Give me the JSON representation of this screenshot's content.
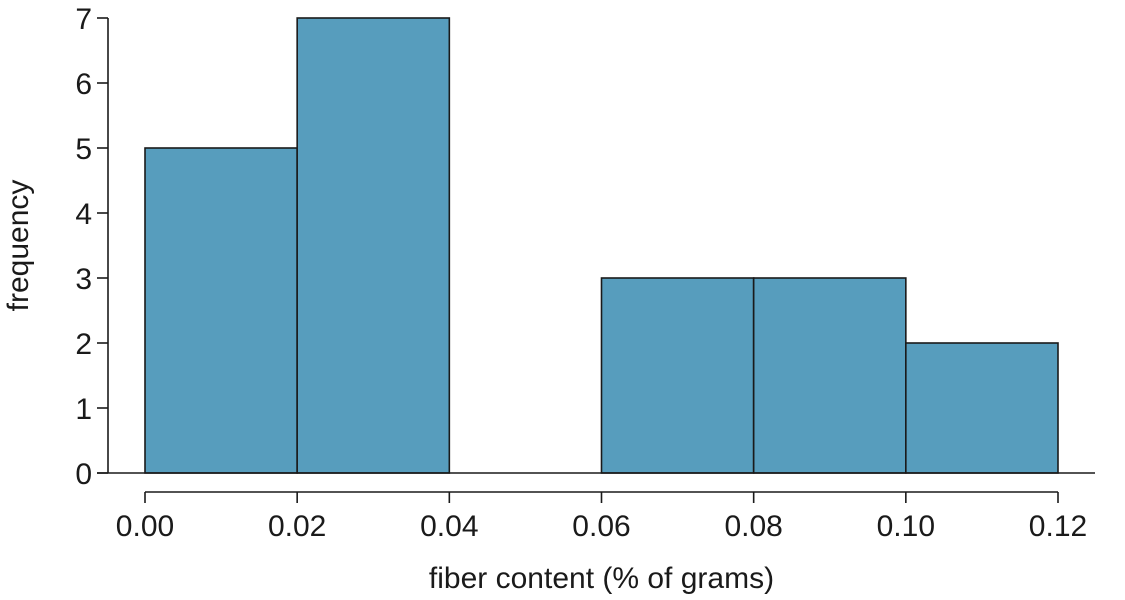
{
  "chart_data": {
    "type": "bar",
    "subtype": "histogram",
    "bins": [
      {
        "start": 0.0,
        "end": 0.02,
        "value": 5
      },
      {
        "start": 0.02,
        "end": 0.04,
        "value": 7
      },
      {
        "start": 0.04,
        "end": 0.06,
        "value": 0
      },
      {
        "start": 0.06,
        "end": 0.08,
        "value": 3
      },
      {
        "start": 0.08,
        "end": 0.1,
        "value": 3
      },
      {
        "start": 0.1,
        "end": 0.12,
        "value": 2
      }
    ],
    "xlabel": "fiber content (% of grams)",
    "ylabel": "frequency",
    "xlim": [
      0.0,
      0.12
    ],
    "ylim": [
      0,
      7
    ],
    "x_ticks": [
      "0.00",
      "0.02",
      "0.04",
      "0.06",
      "0.08",
      "0.10",
      "0.12"
    ],
    "y_ticks": [
      "0",
      "1",
      "2",
      "3",
      "4",
      "5",
      "6",
      "7"
    ],
    "grid": false,
    "bar_color": "#579dbd",
    "edge_color": "#1a1a1a"
  }
}
